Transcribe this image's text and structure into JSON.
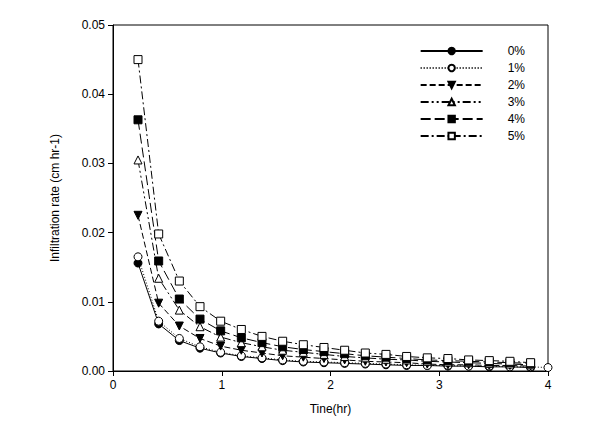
{
  "chart_data": {
    "type": "line",
    "x_label": "Tine(hr)",
    "y_label": "Infiltration rate (cm hr-1)",
    "xlim": [
      0,
      4
    ],
    "xticks": [
      0,
      1,
      2,
      3,
      4
    ],
    "ylim": [
      0,
      0.05
    ],
    "yticks": [
      {
        "value": 0,
        "label": "0.00"
      },
      {
        "value": 0.01,
        "label": "0.01"
      },
      {
        "value": 0.02,
        "label": "0.02"
      },
      {
        "value": 0.03,
        "label": "0.03"
      },
      {
        "value": 0.04,
        "label": "0.04"
      },
      {
        "value": 0.05,
        "label": "0.05"
      }
    ],
    "grid": false,
    "legend": "upper right",
    "x": [
      0.23,
      0.42,
      0.61,
      0.8,
      0.99,
      1.18,
      1.37,
      1.56,
      1.75,
      1.94,
      2.13,
      2.32,
      2.51,
      2.7,
      2.89,
      3.08,
      3.27,
      3.46,
      3.65,
      3.84,
      4.0
    ],
    "series": [
      {
        "name": "0%",
        "color": "#000000",
        "marker": "circle",
        "line_style": "solid",
        "values": [
          0.0156,
          0.0068,
          0.0044,
          0.0033,
          0.0026,
          0.0021,
          0.0018,
          0.0015,
          0.0013,
          0.0012,
          0.0011,
          0.001,
          0.0009,
          0.0008,
          0.0008,
          0.0007,
          0.0007,
          0.0006,
          0.0006,
          0.0005,
          null
        ]
      },
      {
        "name": "1%",
        "color": "#000000",
        "marker": "circle_open",
        "line_style": "dotted",
        "values": [
          0.0165,
          0.0072,
          0.0047,
          0.0035,
          0.0027,
          0.0022,
          0.0019,
          0.0016,
          0.0014,
          0.0013,
          0.0012,
          0.0011,
          0.001,
          0.0009,
          0.0008,
          0.0008,
          0.0007,
          0.0007,
          0.0006,
          0.0006,
          0.0005
        ]
      },
      {
        "name": "2%",
        "color": "#000000",
        "marker": "triangle_down",
        "line_style": "dashed",
        "values": [
          0.0225,
          0.0098,
          0.0065,
          0.0047,
          0.0036,
          0.003,
          0.0026,
          0.0022,
          0.002,
          0.0018,
          0.0016,
          0.0014,
          0.0013,
          0.0012,
          0.001,
          0.0009,
          0.0009,
          0.0008,
          0.0008,
          0.0007,
          null
        ]
      },
      {
        "name": "3%",
        "color": "#000000",
        "marker": "triangle_open",
        "line_style": "dashdotdot",
        "values": [
          0.0305,
          0.0134,
          0.0088,
          0.0064,
          0.0049,
          0.0041,
          0.0035,
          0.003,
          0.0027,
          0.0024,
          0.0021,
          0.0019,
          0.0017,
          0.0016,
          0.0014,
          0.0013,
          0.0012,
          0.0011,
          0.001,
          0.0009,
          null
        ]
      },
      {
        "name": "4%",
        "color": "#000000",
        "marker": "square",
        "line_style": "longdash",
        "values": [
          0.0363,
          0.0159,
          0.0104,
          0.0075,
          0.0058,
          0.0048,
          0.0041,
          0.0035,
          0.0031,
          0.0028,
          0.0025,
          0.0022,
          0.002,
          0.0018,
          0.0016,
          0.0015,
          0.0014,
          0.0013,
          0.0012,
          0.0011,
          null
        ]
      },
      {
        "name": "5%",
        "color": "#000000",
        "marker": "square_open",
        "line_style": "dashdot",
        "values": [
          0.045,
          0.0198,
          0.013,
          0.0093,
          0.0072,
          0.006,
          0.005,
          0.0043,
          0.0038,
          0.0034,
          0.003,
          0.0026,
          0.0024,
          0.0021,
          0.0019,
          0.0018,
          0.0016,
          0.0015,
          0.0014,
          0.0012,
          null
        ]
      }
    ]
  }
}
